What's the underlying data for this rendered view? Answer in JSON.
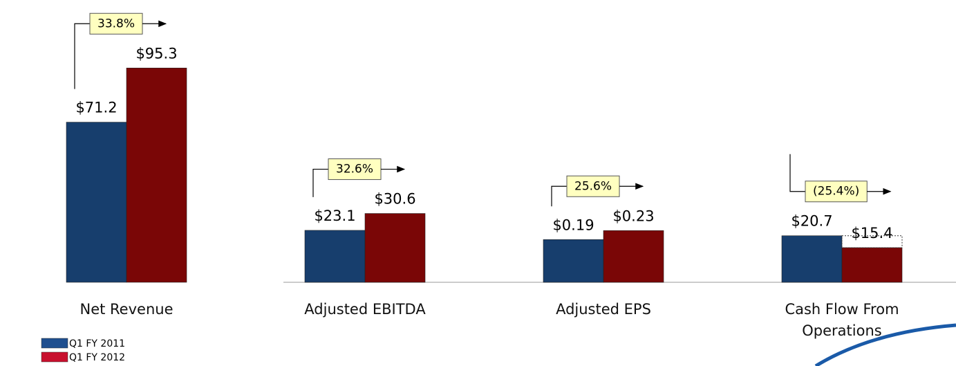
{
  "chart_data": {
    "type": "bar",
    "categories": [
      "Net Revenue",
      "Adjusted EBITDA",
      "Adjusted EPS",
      "Cash Flow From Operations"
    ],
    "series": [
      {
        "name": "Q1 FY 2011",
        "color": "#173e6d",
        "values": [
          71.2,
          23.1,
          0.19,
          20.7
        ],
        "value_labels": [
          "$71.2",
          "$23.1",
          "$0.19",
          "$20.7"
        ]
      },
      {
        "name": "Q1 FY 2012",
        "color": "#7a0606",
        "values": [
          95.3,
          30.6,
          0.23,
          15.4
        ],
        "value_labels": [
          "$95.3",
          "$30.6",
          "$0.23",
          "$15.4"
        ]
      }
    ],
    "annotations": [
      "33.8%",
      "32.6%",
      "25.6%",
      "(25.4%)"
    ],
    "legend_colors": [
      "#1f4f8f",
      "#c8102e"
    ]
  }
}
